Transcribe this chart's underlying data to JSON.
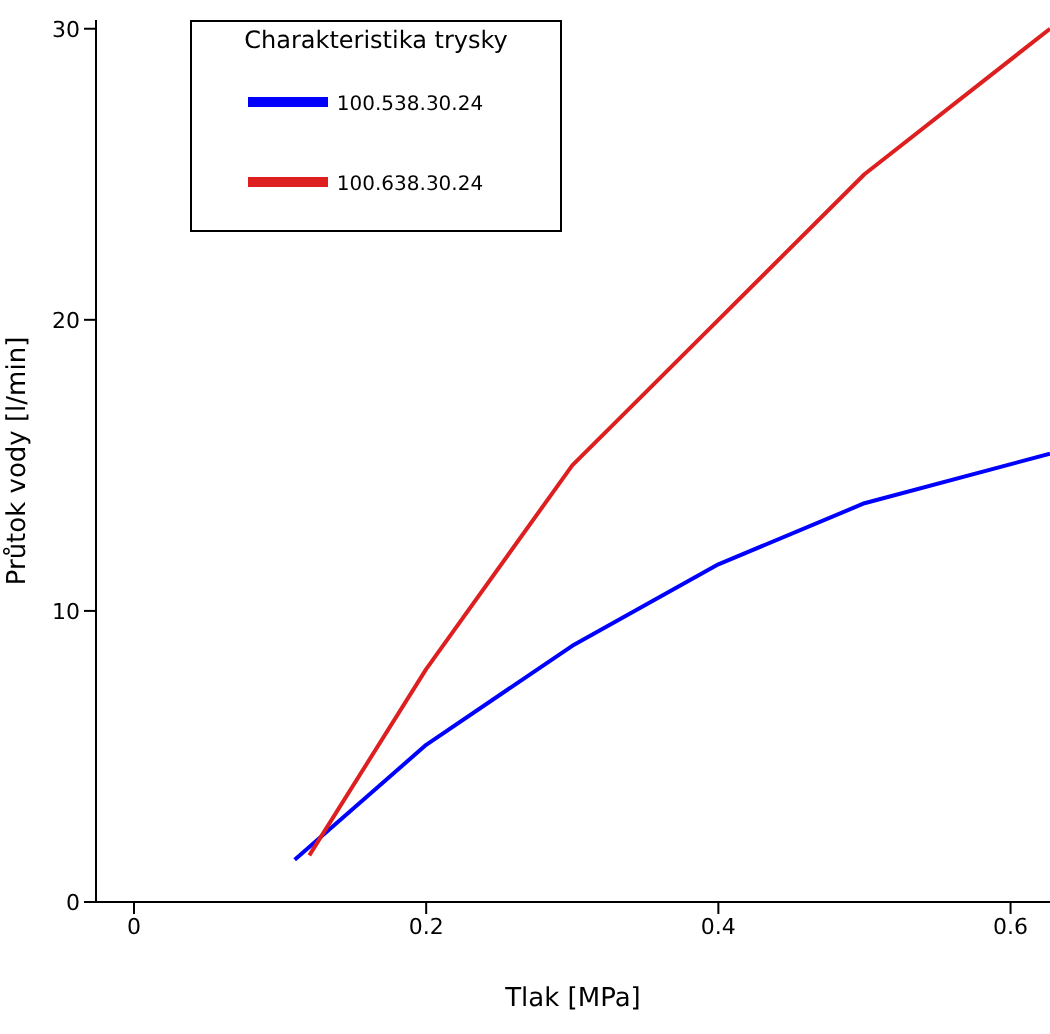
{
  "chart_data": {
    "type": "line",
    "xlabel": "Tlak [MPa]",
    "ylabel": "Průtok vody [l/min]",
    "legend_title": "Charakteristika trysky",
    "legend": "top left",
    "grid": false,
    "marker": "none",
    "line_style": "solid",
    "xlim": [
      -0.026,
      0.627
    ],
    "ylim": [
      0,
      30.3
    ],
    "xticks": [
      0,
      0.2,
      0.4,
      0.6
    ],
    "yticks": [
      0,
      10,
      20,
      30
    ],
    "series": [
      {
        "name": "100.538.30.24",
        "color": "#0000ff",
        "x": [
          0.11,
          0.2,
          0.3,
          0.4,
          0.5,
          0.627
        ],
        "values": [
          1.45,
          5.4,
          8.8,
          11.6,
          13.7,
          15.4
        ]
      },
      {
        "name": "100.638.30.24",
        "color": "#dd1f1f",
        "x": [
          0.12,
          0.2,
          0.3,
          0.4,
          0.5,
          0.627
        ],
        "values": [
          1.6,
          8,
          15,
          20,
          25,
          30
        ]
      }
    ]
  }
}
